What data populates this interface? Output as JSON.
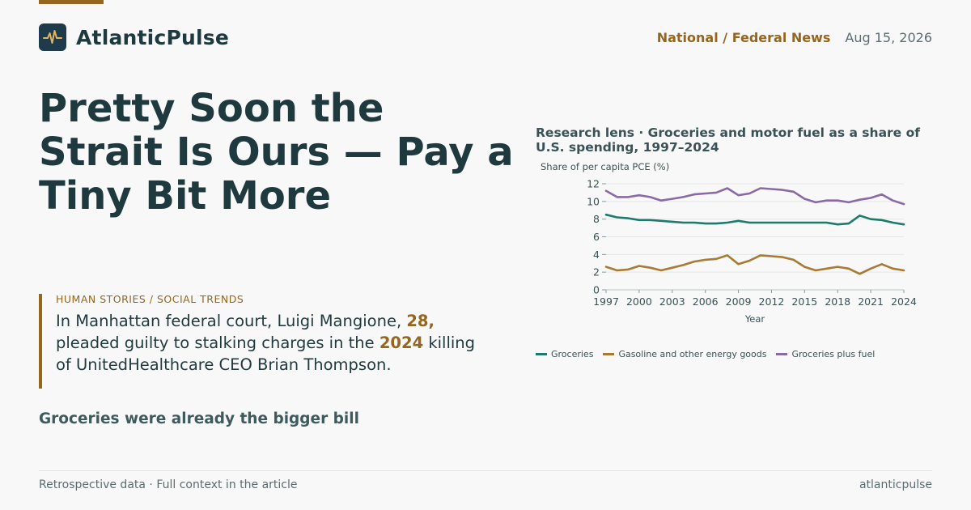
{
  "brand": {
    "name": "AtlanticPulse",
    "logo_icon": "pulse-wave-icon",
    "logo_bg": "#1f3a4a",
    "logo_stroke": "#e0b562"
  },
  "header": {
    "section": "National / Federal News",
    "date": "Aug 15, 2026"
  },
  "article": {
    "headline": "Pretty Soon the Strait Is Ours — Pay a Tiny Bit More",
    "kicker": "HUMAN STORIES / SOCIAL TRENDS",
    "quote_parts": {
      "p1": "In Manhattan federal court, Luigi Mangione, ",
      "age": "28,",
      "p2": " pleaded guilty to stalking charges in the ",
      "year": "2024",
      "p3": " killing of UnitedHealthcare CEO Brian Thompson."
    },
    "subhead": "Groceries were already the bigger bill"
  },
  "footer": {
    "left": "Retrospective data · Full context in the article",
    "right": "atlanticpulse"
  },
  "colors": {
    "accent": "#94661e",
    "text": "#1f3a3f",
    "groceries": "#1f7a6e",
    "fuel": "#a87a35",
    "combined": "#8a6aa6"
  },
  "chart_data": {
    "type": "line",
    "title": "Research lens · Groceries and motor fuel as a share of U.S. spending, 1997–2024",
    "xlabel": "Year",
    "ylabel": "Share of per capita PCE (%)",
    "xlim": [
      1997,
      2024
    ],
    "ylim": [
      0,
      12
    ],
    "yticks": [
      0,
      2,
      4,
      6,
      8,
      10,
      12
    ],
    "xticks": [
      1997,
      2000,
      2003,
      2006,
      2009,
      2012,
      2015,
      2018,
      2021,
      2024
    ],
    "x": [
      1997,
      1998,
      1999,
      2000,
      2001,
      2002,
      2003,
      2004,
      2005,
      2006,
      2007,
      2008,
      2009,
      2010,
      2011,
      2012,
      2013,
      2014,
      2015,
      2016,
      2017,
      2018,
      2019,
      2020,
      2021,
      2022,
      2023,
      2024
    ],
    "grid": "horizontal",
    "legend_position": "bottom",
    "series": [
      {
        "name": "Groceries",
        "color": "#1f7a6e",
        "values": [
          8.5,
          8.2,
          8.1,
          7.9,
          7.9,
          7.8,
          7.7,
          7.6,
          7.6,
          7.5,
          7.5,
          7.6,
          7.8,
          7.6,
          7.6,
          7.6,
          7.6,
          7.6,
          7.6,
          7.6,
          7.6,
          7.4,
          7.5,
          8.4,
          8.0,
          7.9,
          7.6,
          7.4
        ]
      },
      {
        "name": "Gasoline and other energy goods",
        "color": "#a87a35",
        "values": [
          2.6,
          2.2,
          2.3,
          2.7,
          2.5,
          2.2,
          2.5,
          2.8,
          3.2,
          3.4,
          3.5,
          3.9,
          2.9,
          3.3,
          3.9,
          3.8,
          3.7,
          3.4,
          2.6,
          2.2,
          2.4,
          2.6,
          2.4,
          1.8,
          2.4,
          2.9,
          2.4,
          2.2
        ]
      },
      {
        "name": "Groceries plus fuel",
        "color": "#8a6aa6",
        "values": [
          11.2,
          10.5,
          10.5,
          10.7,
          10.5,
          10.1,
          10.3,
          10.5,
          10.8,
          10.9,
          11.0,
          11.5,
          10.7,
          10.9,
          11.5,
          11.4,
          11.3,
          11.1,
          10.3,
          9.9,
          10.1,
          10.1,
          9.9,
          10.2,
          10.4,
          10.8,
          10.1,
          9.7
        ]
      }
    ]
  }
}
